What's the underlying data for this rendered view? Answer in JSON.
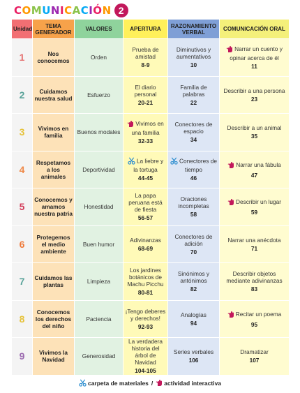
{
  "header": {
    "title": "COMUNICACIÓN",
    "badge": "2",
    "title_colors": [
      "#e91e63",
      "#ff9800",
      "#8bc34a",
      "#03a9f4",
      "#9c27b0"
    ]
  },
  "table": {
    "headers": {
      "unidad": "Unidad",
      "tema": "TEMA GENERADOR",
      "valores": "VALORES",
      "apertura": "APERTURA",
      "razonamiento": "RAZONAMIENTO VERBAL",
      "comunicacion": "COMUNICACIÓN ORAL"
    },
    "rows": [
      {
        "unit": "1",
        "unit_color": "#e57373",
        "tema": "Nos conocemos",
        "valor": "Orden",
        "apertura": {
          "text": "Prueba de amistad",
          "pages": "8-9",
          "icon": ""
        },
        "razonamiento": {
          "text": "Diminutivos y aumentativos",
          "pages": "10",
          "icon": ""
        },
        "comunicacion": {
          "text": "Narrar un cuento y opinar acerca de él",
          "pages": "11",
          "icon": "hand-icon"
        }
      },
      {
        "unit": "2",
        "unit_color": "#5aa39a",
        "tema": "Cuidamos nuestra salud",
        "valor": "Esfuerzo",
        "apertura": {
          "text": "El diario personal",
          "pages": "20-21",
          "icon": ""
        },
        "razonamiento": {
          "text": "Familia de palabras",
          "pages": "22",
          "icon": ""
        },
        "comunicacion": {
          "text": "Describir a una persona",
          "pages": "23",
          "icon": ""
        }
      },
      {
        "unit": "3",
        "unit_color": "#e6c23a",
        "tema": "Vivimos en familia",
        "valor": "Buenos modales",
        "apertura": {
          "text": "Vivimos en una familia",
          "pages": "32-33",
          "icon": "hand-icon"
        },
        "razonamiento": {
          "text": "Conectores de espacio",
          "pages": "34",
          "icon": ""
        },
        "comunicacion": {
          "text": "Describir a un animal",
          "pages": "35",
          "icon": ""
        }
      },
      {
        "unit": "4",
        "unit_color": "#ef8a4a",
        "tema": "Respetamos a los animales",
        "valor": "Deportividad",
        "apertura": {
          "text": "La liebre y la tortuga",
          "pages": "44-45",
          "icon": "scissors-icon"
        },
        "razonamiento": {
          "text": "Conectores de tiempo",
          "pages": "46",
          "icon": "scissors-icon"
        },
        "comunicacion": {
          "text": "Narrar una fábula",
          "pages": "47",
          "icon": "hand-icon"
        }
      },
      {
        "unit": "5",
        "unit_color": "#d33d5a",
        "tema": "Conocemos y amamos nuestra patria",
        "valor": "Honestidad",
        "apertura": {
          "text": "La papa peruana está de fiesta",
          "pages": "56-57",
          "icon": ""
        },
        "razonamiento": {
          "text": "Oraciones incompletas",
          "pages": "58",
          "icon": ""
        },
        "comunicacion": {
          "text": "Describir un lugar",
          "pages": "59",
          "icon": "hand-icon"
        }
      },
      {
        "unit": "6",
        "unit_color": "#ef7a3a",
        "tema": "Protegemos el medio ambiente",
        "valor": "Buen humor",
        "apertura": {
          "text": "Adivinanzas",
          "pages": "68-69",
          "icon": ""
        },
        "razonamiento": {
          "text": "Conectores de adición",
          "pages": "70",
          "icon": ""
        },
        "comunicacion": {
          "text": "Narrar una anécdota",
          "pages": "71",
          "icon": ""
        }
      },
      {
        "unit": "7",
        "unit_color": "#5aa39a",
        "tema": "Cuidamos las plantas",
        "valor": "Limpieza",
        "apertura": {
          "text": "Los jardines botánicos de Machu Picchu",
          "pages": "80-81",
          "icon": ""
        },
        "razonamiento": {
          "text": "Sinónimos y antónimos",
          "pages": "82",
          "icon": ""
        },
        "comunicacion": {
          "text": "Describir objetos mediante adivinanzas",
          "pages": "83",
          "icon": ""
        }
      },
      {
        "unit": "8",
        "unit_color": "#e6c23a",
        "tema": "Conocemos los derechos del niño",
        "valor": "Paciencia",
        "apertura": {
          "text": "¡Tengo deberes y derechos!",
          "pages": "92-93",
          "icon": ""
        },
        "razonamiento": {
          "text": "Analogías",
          "pages": "94",
          "icon": ""
        },
        "comunicacion": {
          "text": "Recitar un poema",
          "pages": "95",
          "icon": "hand-icon"
        }
      },
      {
        "unit": "9",
        "unit_color": "#9c6bb0",
        "tema": "Vivimos la Navidad",
        "valor": "Generosidad",
        "apertura": {
          "text": "La verdadera historia del árbol de Navidad",
          "pages": "104-105",
          "icon": ""
        },
        "razonamiento": {
          "text": "Series verbales",
          "pages": "106",
          "icon": ""
        },
        "comunicacion": {
          "text": "Dramatizar",
          "pages": "107",
          "icon": ""
        }
      }
    ]
  },
  "legend": {
    "materiales": "carpeta de materiales",
    "separator": "/",
    "interactiva": "actividad interactiva"
  },
  "colors": {
    "scissors": "#2f8fd0",
    "hand": "#c2185b"
  }
}
